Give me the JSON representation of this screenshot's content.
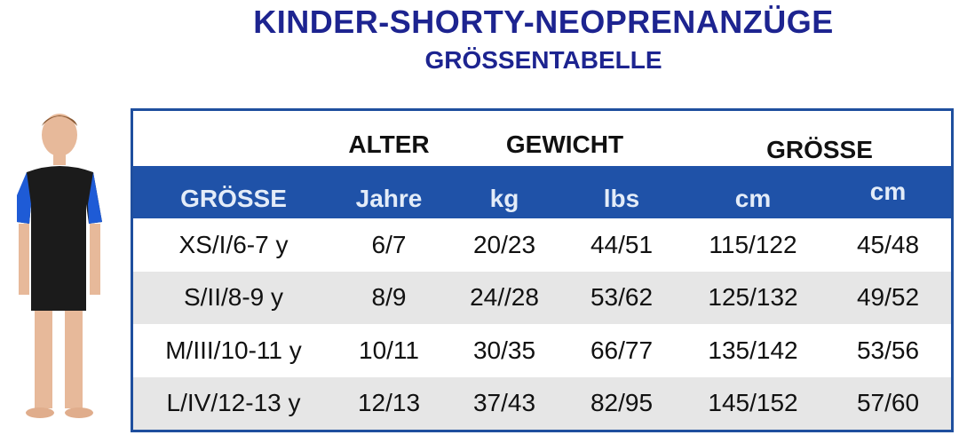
{
  "header": {
    "title": "KINDER-SHORTY-NEOPRENANZÜGE",
    "subtitle": "GRÖSSENTABELLE"
  },
  "table": {
    "groups": [
      "ALTER",
      "GEWICHT",
      "GRÖSSE"
    ],
    "columns": [
      "GRÖSSE",
      "Jahre",
      "kg",
      "lbs",
      "cm",
      "cm"
    ],
    "rows": [
      [
        "XS/I/6-7 y",
        "6/7",
        "20/23",
        "44/51",
        "115/122",
        "45/48"
      ],
      [
        "S/II/8-9 y",
        "8/9",
        "24//28",
        "53/62",
        "125/132",
        "49/52"
      ],
      [
        "M/III/10-11 y",
        "10/11",
        "30/35",
        "66/77",
        "135/142",
        "53/56"
      ],
      [
        "L/IV/12-13 y",
        "12/13",
        "37/43",
        "82/95",
        "145/152",
        "57/60"
      ]
    ]
  }
}
